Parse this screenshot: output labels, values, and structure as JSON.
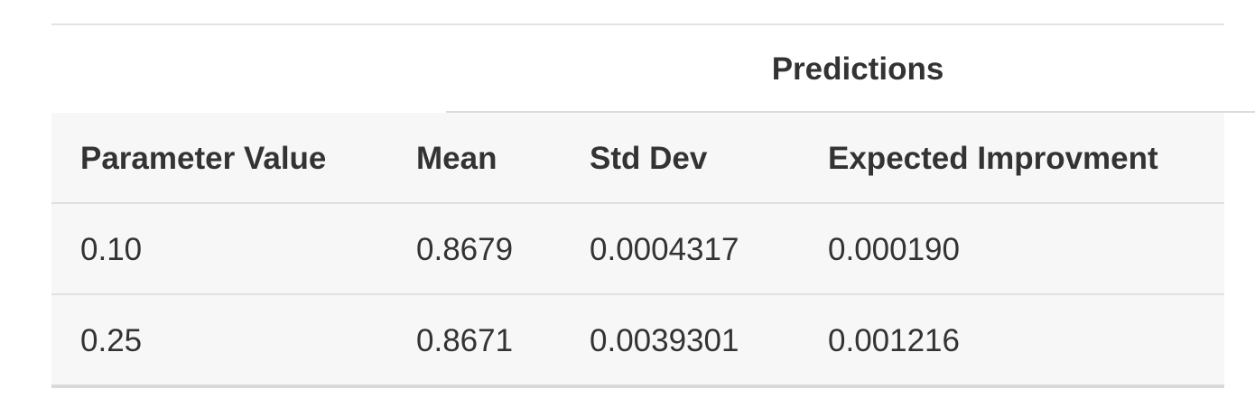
{
  "table": {
    "spanner": "Predictions",
    "columns": [
      "Parameter Value",
      "Mean",
      "Std Dev",
      "Expected Improvment"
    ],
    "rows": [
      [
        "0.10",
        "0.8679",
        "0.0004317",
        "0.000190"
      ],
      [
        "0.25",
        "0.8671",
        "0.0039301",
        "0.001216"
      ]
    ]
  },
  "colors": {
    "text": "#333333",
    "row_background": "#f7f7f7",
    "rule": "#e0e0e0"
  }
}
